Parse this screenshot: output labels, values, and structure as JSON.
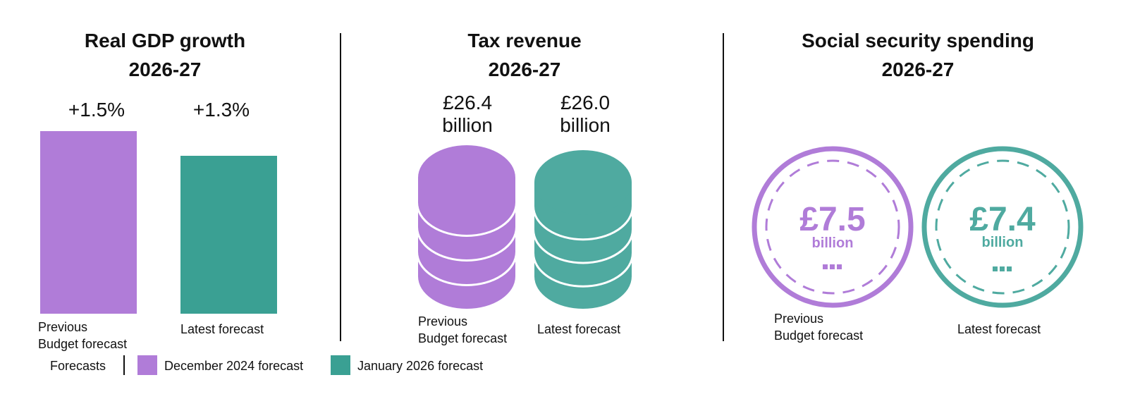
{
  "colors": {
    "previous": "#B07CD8",
    "latest_bar": "#3AA093",
    "latest": "#4FAAA0"
  },
  "panels": {
    "gdp": {
      "title": "Real GDP growth",
      "period": "2026-27",
      "previous_value": "+1.5%",
      "latest_value": "+1.3%",
      "previous_label_1": "Previous",
      "previous_label_2": "Budget forecast",
      "latest_label": "Latest forecast"
    },
    "tax": {
      "title": "Tax revenue",
      "period": "2026-27",
      "previous_value": "£26.4",
      "previous_unit": "billion",
      "latest_value": "£26.0",
      "latest_unit": "billion",
      "previous_label_1": "Previous",
      "previous_label_2": "Budget forecast",
      "latest_label": "Latest forecast"
    },
    "social": {
      "title": "Social security spending",
      "period": "2026-27",
      "previous_value": "£7.5",
      "previous_unit": "billion",
      "latest_value": "£7.4",
      "latest_unit": "billion",
      "previous_label_1": "Previous",
      "previous_label_2": "Budget forecast",
      "latest_label": "Latest forecast"
    }
  },
  "legend": {
    "title": "Forecasts",
    "items": [
      "December 2024 forecast",
      "January 2026 forecast"
    ]
  },
  "chart_data": [
    {
      "type": "bar",
      "title": "Real GDP growth 2026-27",
      "categories": [
        "Previous Budget forecast",
        "Latest forecast"
      ],
      "values": [
        1.5,
        1.3
      ],
      "unit": "%",
      "series_labels": [
        "December 2024 forecast",
        "January 2026 forecast"
      ]
    },
    {
      "type": "pictogram",
      "title": "Tax revenue 2026-27",
      "categories": [
        "Previous Budget forecast",
        "Latest forecast"
      ],
      "values": [
        26.4,
        26.0
      ],
      "unit": "£ billion"
    },
    {
      "type": "pictogram",
      "title": "Social security spending 2026-27",
      "categories": [
        "Previous Budget forecast",
        "Latest forecast"
      ],
      "values": [
        7.5,
        7.4
      ],
      "unit": "£ billion"
    }
  ]
}
